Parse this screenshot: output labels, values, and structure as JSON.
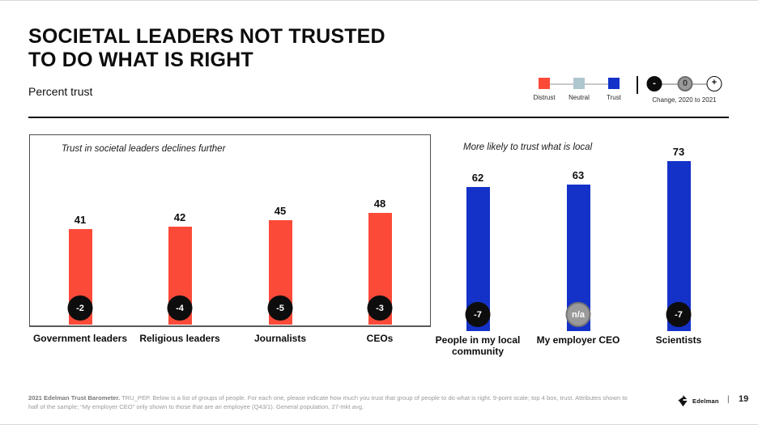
{
  "header": {
    "title_line1": "SOCIETAL LEADERS NOT TRUSTED",
    "title_line2": "TO DO WHAT IS RIGHT",
    "subtitle": "Percent trust"
  },
  "legend": {
    "scale": [
      {
        "label": "Distrust",
        "color": "#FC4A38"
      },
      {
        "label": "Neutral",
        "color": "#AEC6CE"
      },
      {
        "label": "Trust",
        "color": "#1432C8"
      }
    ],
    "change": {
      "label": "Change, 2020 to 2021",
      "markers": [
        {
          "symbol": "-",
          "meaning": "decrease"
        },
        {
          "symbol": "0",
          "meaning": "no change"
        },
        {
          "symbol": "+",
          "meaning": "increase"
        }
      ]
    }
  },
  "colors": {
    "distrust_red": "#FC4A38",
    "neutral_gray_blue": "#AEC6CE",
    "trust_blue": "#1432C8",
    "badge_black": "#0d0d0d",
    "badge_na_gray": "#9a9a9a"
  },
  "chart_data": [
    {
      "type": "bar",
      "title": "Trust in societal leaders declines further",
      "categories": [
        "Government leaders",
        "Religious leaders",
        "Journalists",
        "CEOs"
      ],
      "values": [
        41,
        42,
        45,
        48
      ],
      "changes": [
        "-2",
        "-4",
        "-5",
        "-3"
      ],
      "bar_color": "#FC4A38",
      "ylabel": "Percent trust",
      "ylim": [
        0,
        83
      ],
      "grid": false,
      "boxed": true
    },
    {
      "type": "bar",
      "title": "More likely to trust what is local",
      "categories": [
        "People in my local community",
        "My employer CEO",
        "Scientists"
      ],
      "values": [
        62,
        63,
        73
      ],
      "changes": [
        "-7",
        "n/a",
        "-7"
      ],
      "bar_color": "#1432C8",
      "ylabel": "Percent trust",
      "ylim": [
        0,
        83
      ],
      "grid": false,
      "boxed": false
    }
  ],
  "footer": {
    "source_bold": "2021 Edelman Trust Barometer.",
    "source_text": " TRU_PEP. Below is a list of groups of people. For each one, please indicate how much you trust that group of people to do what is right. 9-point scale; top 4 box, trust. Attributes shown to half of the sample; “My employer CEO” only shown to those that are an employee (Q43/1). General population, 27-mkt avg.",
    "brand": "Edelman",
    "separator": "|",
    "page": "19"
  }
}
